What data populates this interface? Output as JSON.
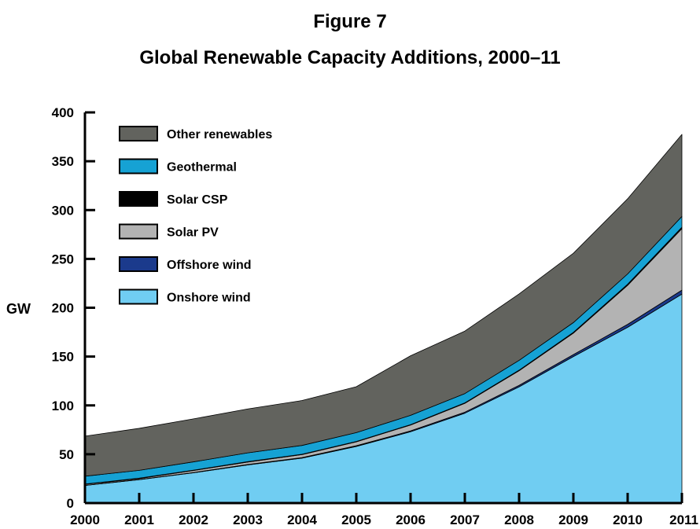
{
  "figure_label": "Figure 7",
  "title": "Global Renewable Capacity Additions, 2000–11",
  "chart_data": {
    "type": "area",
    "stacked": true,
    "ylabel": "GW",
    "xlabel": "",
    "ylim": [
      0,
      400
    ],
    "yticks": [
      0,
      50,
      100,
      150,
      200,
      250,
      300,
      350,
      400
    ],
    "categories": [
      "2000",
      "2001",
      "2002",
      "2003",
      "2004",
      "2005",
      "2006",
      "2007",
      "2008",
      "2009",
      "2010",
      "2011"
    ],
    "legend_position": "top-left",
    "series": [
      {
        "name": "Onshore wind",
        "color": "#70CDF2",
        "values": [
          18,
          24,
          31,
          39,
          46,
          58,
          73,
          92,
          119,
          150,
          180,
          214
        ]
      },
      {
        "name": "Offshore wind",
        "color": "#1B3A8C",
        "values": [
          0.1,
          0.1,
          0.3,
          0.5,
          0.6,
          0.7,
          0.9,
          1.1,
          1.5,
          2.0,
          3.0,
          4.0
        ]
      },
      {
        "name": "Solar PV",
        "color": "#B3B3B3",
        "values": [
          1,
          1,
          2,
          2.5,
          3,
          4,
          6,
          9,
          15,
          22,
          40,
          63
        ]
      },
      {
        "name": "Solar CSP",
        "color": "#000000",
        "values": [
          0.4,
          0.4,
          0.4,
          0.4,
          0.4,
          0.4,
          0.4,
          0.5,
          0.6,
          0.8,
          1.1,
          1.5
        ]
      },
      {
        "name": "Geothermal",
        "color": "#16A2D4",
        "values": [
          8,
          8,
          8.5,
          9,
          9,
          9,
          9.5,
          9.5,
          10,
          10,
          10.5,
          11
        ]
      },
      {
        "name": "Other renewables",
        "color": "#62635E",
        "values": [
          41,
          43,
          44,
          45,
          46,
          47,
          61,
          64,
          68,
          71,
          77,
          84
        ]
      }
    ]
  }
}
